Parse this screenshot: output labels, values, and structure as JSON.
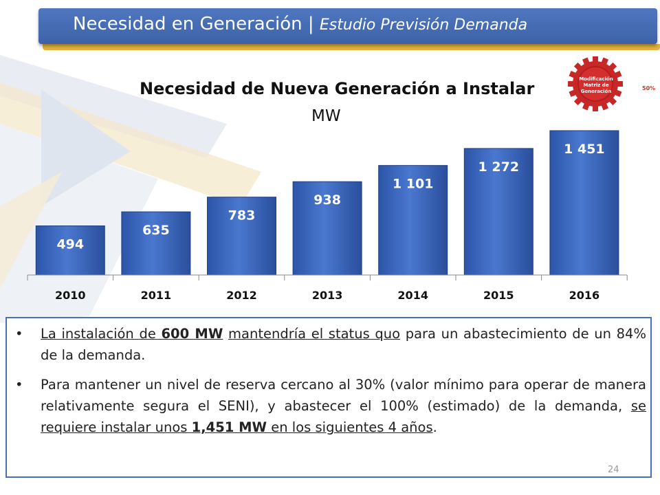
{
  "header": {
    "title": "Necesidad en Generación |",
    "subtitle": "Estudio Previsión Demanda"
  },
  "badge": {
    "label_lines": [
      "Modificación",
      "Matriz de",
      "Generación"
    ],
    "percent": "50%"
  },
  "chart_data": {
    "type": "bar",
    "title": "Necesidad de Nueva Generación a Instalar",
    "subtitle": "MW",
    "categories": [
      "2010",
      "2011",
      "2012",
      "2013",
      "2014",
      "2015",
      "2016"
    ],
    "values": [
      494,
      635,
      783,
      938,
      1101,
      1272,
      1451
    ],
    "value_labels": [
      "494",
      "635",
      "783",
      "938",
      "1 101",
      "1 272",
      "1 451"
    ],
    "ylim": [
      0,
      1451
    ],
    "grid": false,
    "legend": "none",
    "colors": {
      "bar": "#3a64b8",
      "bar_light": "#5b86d6"
    }
  },
  "bullets": [
    {
      "parts": [
        {
          "text": "La instalación de ",
          "u": true,
          "b": false
        },
        {
          "text": "600 MW",
          "u": true,
          "b": true
        },
        {
          "text": " ",
          "u": false,
          "b": false
        },
        {
          "text": "mantendría el status quo",
          "u": true,
          "b": false
        },
        {
          "text": " para un abastecimiento de un 84% de la demanda.",
          "u": false,
          "b": false
        }
      ]
    },
    {
      "parts": [
        {
          "text": "Para mantener un nivel de reserva cercano al 30% (valor mínimo para operar de manera relativamente segura el SENI), y abastecer el 100% (estimado) de la demanda, ",
          "u": false,
          "b": false
        },
        {
          "text": "se requiere instalar unos ",
          "u": true,
          "b": false
        },
        {
          "text": "1,451 MW",
          "u": true,
          "b": true
        },
        {
          "text": " en los siguientes 4 años",
          "u": true,
          "b": false
        },
        {
          "text": ".",
          "u": false,
          "b": false
        }
      ]
    }
  ],
  "page_number": "24"
}
